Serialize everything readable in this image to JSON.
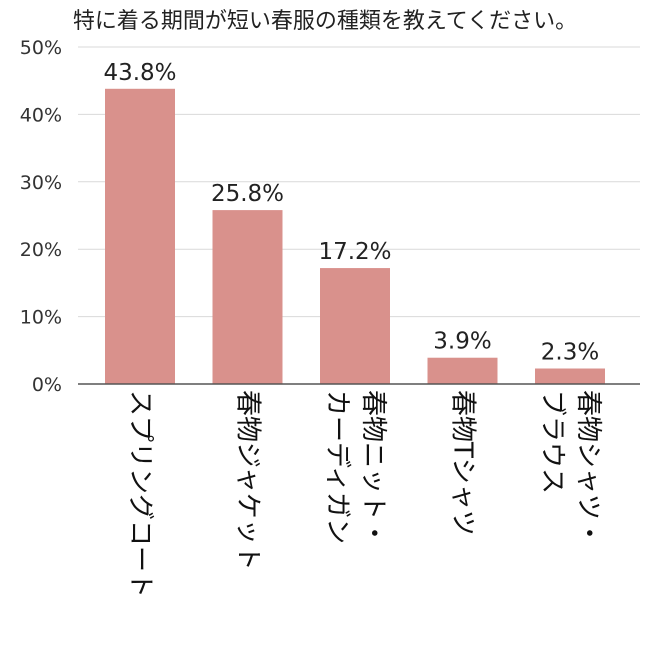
{
  "chart_data": {
    "type": "bar",
    "title": "特に着る期間が短い春服の種類を教えてください。",
    "xlabel": "",
    "ylabel": "",
    "ylim": [
      0,
      50
    ],
    "yticks": [
      0,
      10,
      20,
      30,
      40,
      50
    ],
    "ytick_labels": [
      "0%",
      "10%",
      "20%",
      "30%",
      "40%",
      "50%"
    ],
    "grid": true,
    "legend": "none",
    "bar_color": "#d9918c",
    "categories": [
      [
        "スプリングコート"
      ],
      [
        "春物ジャケット"
      ],
      [
        "春物ニット・",
        "カーディガン"
      ],
      [
        "春物Tシャツ"
      ],
      [
        "春物シャツ・",
        "ブラウス"
      ]
    ],
    "values": [
      43.8,
      25.8,
      17.2,
      3.9,
      2.3
    ],
    "value_labels": [
      "43.8%",
      "25.8%",
      "17.2%",
      "3.9%",
      "2.3%"
    ]
  }
}
